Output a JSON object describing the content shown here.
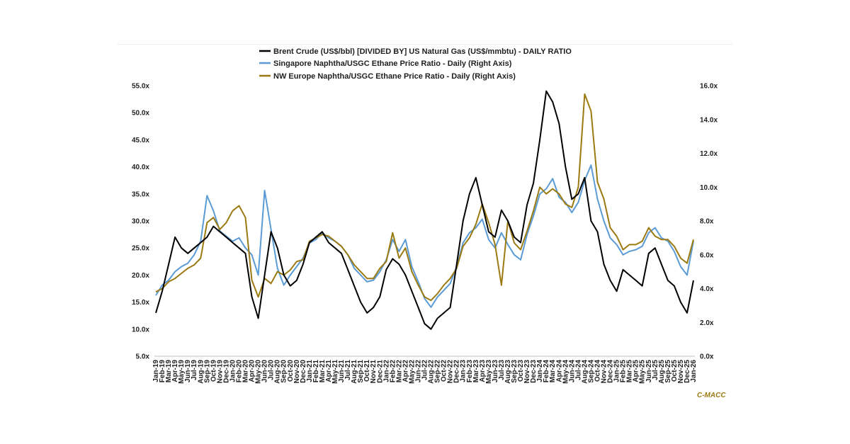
{
  "chart_data": {
    "type": "line",
    "credit": "C-MACC",
    "legend_position": "top-center",
    "grid": false,
    "x_labels": [
      "Jan-19",
      "Feb-19",
      "Mar-19",
      "Apr-19",
      "May-19",
      "Jun-19",
      "Jul-19",
      "Aug-19",
      "Sep-19",
      "Oct-19",
      "Nov-19",
      "Dec-19",
      "Jan-20",
      "Feb-20",
      "Mar-20",
      "Apr-20",
      "May-20",
      "Jun-20",
      "Jul-20",
      "Aug-20",
      "Sep-20",
      "Oct-20",
      "Nov-20",
      "Dec-20",
      "Jan-21",
      "Feb-21",
      "Mar-21",
      "Apr-21",
      "May-21",
      "Jun-21",
      "Jul-21",
      "Aug-21",
      "Sep-21",
      "Oct-21",
      "Nov-21",
      "Dec-21",
      "Jan-22",
      "Feb-22",
      "Mar-22",
      "Apr-22",
      "May-22",
      "Jun-22",
      "Jul-22",
      "Aug-22",
      "Sep-22",
      "Oct-22",
      "Nov-22",
      "Dec-22",
      "Jan-23",
      "Feb-23",
      "Mar-23",
      "Apr-23",
      "May-23",
      "Jun-23",
      "Jul-23",
      "Aug-23",
      "Sep-23",
      "Oct-23",
      "Nov-23",
      "Dec-23",
      "Jan-24",
      "Feb-24",
      "Mar-24",
      "Apr-24",
      "May-24",
      "Jun-24",
      "Jul-24",
      "Aug-24",
      "Sep-24",
      "Oct-24",
      "Nov-24",
      "Dec-24",
      "Jan-25",
      "Feb-25",
      "Mar-25",
      "Apr-25",
      "May-25",
      "Jun-25",
      "Jul-25",
      "Aug-25",
      "Sep-25",
      "Oct-25",
      "Nov-25",
      "Dec-25",
      "Jan-26"
    ],
    "y_left": {
      "ylim": [
        5,
        55
      ],
      "ticks": [
        "5.0x",
        "10.0x",
        "15.0x",
        "20.0x",
        "25.0x",
        "30.0x",
        "35.0x",
        "40.0x",
        "45.0x",
        "50.0x",
        "55.0x"
      ]
    },
    "y_right": {
      "ylim": [
        0,
        16
      ],
      "ticks": [
        "0.0x",
        "2.0x",
        "4.0x",
        "6.0x",
        "8.0x",
        "10.0x",
        "12.0x",
        "14.0x",
        "16.0x"
      ]
    },
    "series": [
      {
        "name": "Brent Crude (US$/bbl) [DIVIDED BY] US Natural Gas (US$/mmbtu) - DAILY RATIO",
        "axis": "left",
        "color": "#000000",
        "values": [
          13,
          17,
          22,
          27,
          25,
          24,
          25,
          26,
          27,
          29,
          28,
          27,
          26,
          25,
          24,
          16,
          12,
          20,
          28,
          25,
          20,
          18,
          19,
          22,
          26,
          27,
          28,
          26,
          25,
          24,
          21,
          18,
          15,
          13,
          14,
          16,
          21,
          23,
          22,
          20,
          17,
          14,
          11,
          10,
          12,
          13,
          14,
          22,
          30,
          35,
          38,
          33,
          28,
          27,
          32,
          30,
          27,
          26,
          33,
          37,
          45,
          54,
          52,
          48,
          40,
          34,
          35,
          38,
          30,
          28,
          22,
          19,
          17,
          21,
          20,
          19,
          18,
          24,
          25,
          22,
          19,
          18,
          15,
          13,
          19
        ]
      },
      {
        "name": "Singapore Naphtha/USGC Ethane Price Ratio - Daily (Right Axis)",
        "axis": "right",
        "color": "#5b9bd5",
        "values": [
          3.6,
          4.2,
          4.5,
          5.0,
          5.3,
          5.5,
          6.0,
          6.8,
          9.5,
          8.6,
          7.4,
          7.1,
          6.8,
          7.0,
          6.4,
          6.0,
          4.8,
          9.8,
          7.5,
          5.2,
          4.2,
          4.8,
          5.3,
          5.8,
          6.7,
          6.9,
          7.3,
          7.0,
          6.8,
          6.5,
          6.0,
          5.2,
          4.8,
          4.4,
          4.5,
          5.0,
          5.7,
          6.9,
          6.2,
          6.9,
          5.3,
          4.4,
          3.4,
          2.9,
          3.5,
          3.9,
          4.3,
          5.3,
          6.7,
          7.3,
          7.6,
          8.1,
          6.9,
          6.4,
          7.3,
          6.6,
          6.0,
          5.7,
          7.2,
          8.3,
          9.6,
          9.9,
          10.5,
          9.4,
          9.1,
          8.5,
          9.1,
          10.4,
          11.3,
          9.3,
          8.0,
          7.0,
          6.6,
          6.0,
          6.2,
          6.3,
          6.5,
          7.3,
          7.6,
          7.0,
          6.8,
          6.2,
          5.3,
          4.8,
          6.8
        ]
      },
      {
        "name": "NW Europe Naphtha/USGC Ethane Price Ratio - Daily (Right Axis)",
        "axis": "right",
        "color": "#9c7a12",
        "values": [
          3.8,
          4.0,
          4.4,
          4.6,
          4.9,
          5.2,
          5.4,
          5.8,
          7.9,
          8.2,
          7.5,
          7.9,
          8.6,
          8.9,
          8.2,
          4.5,
          3.5,
          4.6,
          4.3,
          5.0,
          4.8,
          5.1,
          5.6,
          5.7,
          6.8,
          7.0,
          7.2,
          7.1,
          6.8,
          6.5,
          6.0,
          5.4,
          5.0,
          4.6,
          4.6,
          5.2,
          5.6,
          7.3,
          5.8,
          6.4,
          5.0,
          4.2,
          3.5,
          3.3,
          3.7,
          4.2,
          4.6,
          5.2,
          6.5,
          7.0,
          7.8,
          9.0,
          7.9,
          6.6,
          4.2,
          8.0,
          6.7,
          6.3,
          7.4,
          8.6,
          10.0,
          9.6,
          9.9,
          9.6,
          9.0,
          8.8,
          10.0,
          15.5,
          14.5,
          10.3,
          9.3,
          7.6,
          7.1,
          6.3,
          6.6,
          6.6,
          6.8,
          7.6,
          7.1,
          6.9,
          6.9,
          6.5,
          5.8,
          5.5,
          6.9
        ]
      }
    ]
  }
}
